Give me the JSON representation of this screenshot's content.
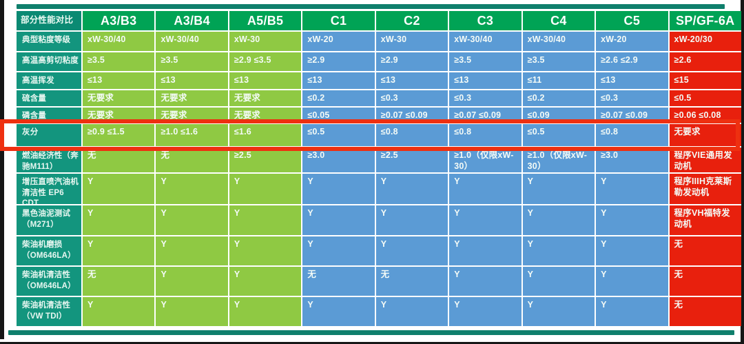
{
  "chart_data": {
    "type": "table",
    "title": "部分性能对比",
    "corner_label": "部分性能对比",
    "columns": [
      "A3/B3",
      "A3/B4",
      "A5/B5",
      "C1",
      "C2",
      "C3",
      "C4",
      "C5",
      "SP/GF-6A"
    ],
    "column_groups": [
      "acea-ab",
      "acea-ab",
      "acea-ab",
      "acea-c",
      "acea-c",
      "acea-c",
      "acea-c",
      "acea-c",
      "ilsac"
    ],
    "rows": [
      {
        "label": "典型粘度等级",
        "cells": [
          "xW-30/40",
          "xW-30/40",
          "xW-30",
          "xW-20",
          "xW-30",
          "xW-30/40",
          "xW-30/40",
          "xW-20",
          "xW-20/30"
        ]
      },
      {
        "label": "高温高剪切粘度",
        "cells": [
          "≥3.5",
          "≥3.5",
          "≥2.9 ≤3.5",
          "≥2.9",
          "≥2.9",
          "≥3.5",
          "≥3.5",
          "≥2.6 ≤2.9",
          "≥2.6"
        ]
      },
      {
        "label": "高温挥发",
        "cells": [
          "≤13",
          "≤13",
          "≤13",
          "≤13",
          "≤13",
          "≤13",
          "≤11",
          "≤13",
          "≤15"
        ]
      },
      {
        "label": "硫含量",
        "cells": [
          "无要求",
          "无要求",
          "无要求",
          "≤0.2",
          "≤0.3",
          "≤0.3",
          "≤0.2",
          "≤0.3",
          "≤0.5"
        ]
      },
      {
        "label": "磷含量",
        "cells": [
          "无要求",
          "无要求",
          "无要求",
          "≤0.05",
          "≥0.07 ≤0.09",
          "≥0.07 ≤0.09",
          "≤0.09",
          "≥0.07 ≤0.09",
          "≥0.06 ≤0.08"
        ]
      },
      {
        "label": "灰分",
        "cells": [
          "≥0.9 ≤1.5",
          "≥1.0 ≤1.6",
          "≤1.6",
          "≤0.5",
          "≤0.8",
          "≤0.8",
          "≤0.5",
          "≤0.8",
          "无要求"
        ]
      },
      {
        "label": "燃油经济性（奔驰M111）",
        "cells": [
          "无",
          "无",
          "≥2.5",
          "≥3.0",
          "≥2.5",
          "≥1.0（仅限xW-30）",
          "≥1.0（仅限xW-30）",
          "≥3.0",
          "程序VIE通用发动机"
        ]
      },
      {
        "label": "增压直喷汽油机清洁性 EP6 CDT",
        "cells": [
          "Y",
          "Y",
          "Y",
          "Y",
          "Y",
          "Y",
          "Y",
          "Y",
          "程序IIIH克莱斯勒发动机"
        ]
      },
      {
        "label": "黑色油泥测试（M271）",
        "cells": [
          "Y",
          "Y",
          "Y",
          "Y",
          "Y",
          "Y",
          "Y",
          "Y",
          "程序VH福特发动机"
        ]
      },
      {
        "label": "柴油机磨损（OM646LA）",
        "cells": [
          "Y",
          "Y",
          "Y",
          "Y",
          "Y",
          "Y",
          "Y",
          "Y",
          "无"
        ]
      },
      {
        "label": "柴油机清洁性（OM646LA）",
        "cells": [
          "无",
          "Y",
          "Y",
          "无",
          "无",
          "Y",
          "Y",
          "Y",
          "无"
        ]
      },
      {
        "label": "柴油机清洁性（VW TDI）",
        "cells": [
          "Y",
          "Y",
          "Y",
          "Y",
          "Y",
          "Y",
          "Y",
          "Y",
          "无"
        ]
      }
    ],
    "highlight_row": "灰分",
    "legend_position": "none",
    "grid": true
  },
  "colors": {
    "label_header_bg": "#0b8a73",
    "label_cell_bg": "#13957e",
    "column_header_bg": "#00a355",
    "acea_ab_bg": "#8fc943",
    "acea_c_bg": "#5b9bd5",
    "ilsac_bg": "#e8200d",
    "divider_bar": "#0f7f6c",
    "highlight_border": "#ee3010",
    "grid_line": "#ffffff"
  }
}
